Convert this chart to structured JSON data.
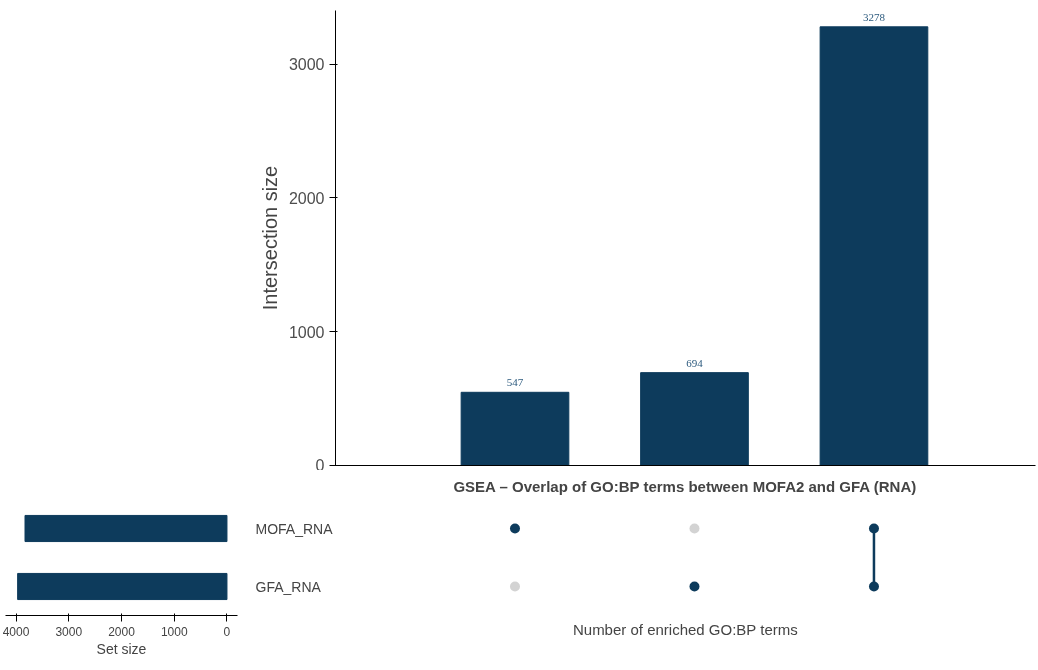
{
  "chart_data": [
    {
      "type": "bar",
      "categories": [
        null,
        null,
        null
      ],
      "values": [
        547,
        694,
        3278
      ],
      "color": "#0d3b5c",
      "ylabel": "Intersection size",
      "ylim": [
        0,
        3400
      ],
      "yticks": [
        0,
        1000,
        2000,
        3000
      ],
      "data_labels": true
    },
    {
      "type": "bar",
      "orientation": "horizontal",
      "categories": [
        "MOFA_RNA",
        "GFA_RNA"
      ],
      "values": [
        3830,
        3970
      ],
      "color": "#0d3b5c",
      "xlabel": "Set size",
      "xlim": [
        4200,
        -200
      ],
      "xticks": [
        4000,
        3000,
        2000,
        1000,
        0
      ]
    },
    {
      "type": "other",
      "title": "GSEA – Overlap of GO:BP terms between MOFA2 and GFA (RNA)",
      "xlabel": "Number of enriched GO:BP terms",
      "cells": [
        [
          true,
          false,
          true
        ],
        [
          false,
          true,
          true
        ]
      ],
      "colors": [
        "#0d3b5c",
        "#d3d3d3"
      ]
    }
  ]
}
